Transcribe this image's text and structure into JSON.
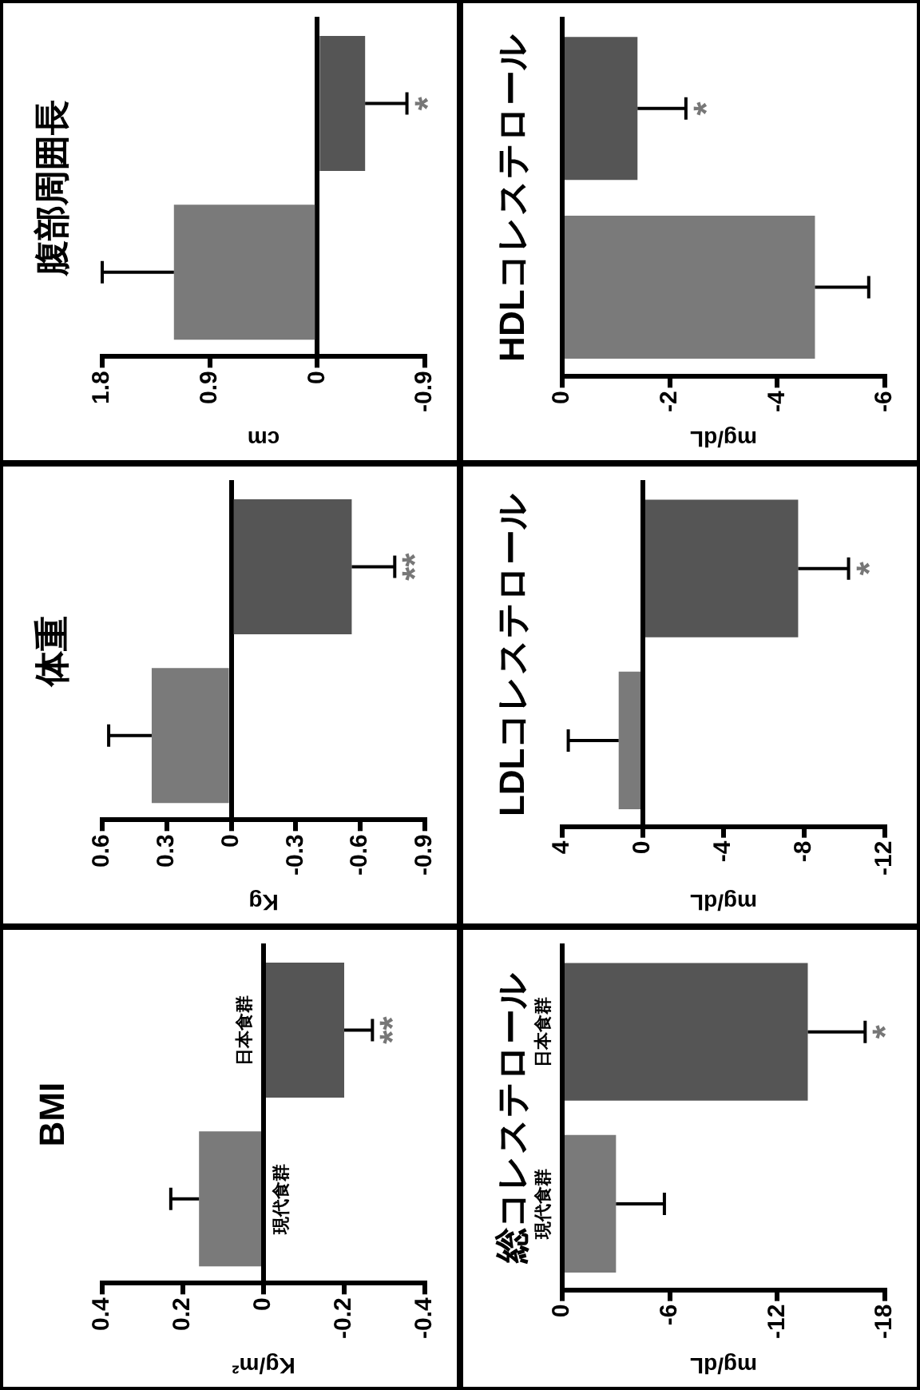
{
  "chart_data": [
    {
      "type": "bar",
      "orientation": "horizontal",
      "title": "腹部周囲長",
      "xlabel": "cm",
      "categories": [
        null,
        null
      ],
      "values": [
        -0.4,
        1.2
      ],
      "colors": [
        "#555555",
        "#7a7a7a"
      ],
      "errors": [
        0.35,
        0.6
      ],
      "xlim": [
        1.8,
        -0.9
      ],
      "xticks": [
        1.8,
        0.9,
        0,
        -0.9
      ],
      "annotations": [
        {
          "text": "*",
          "x": -0.75
        }
      ]
    },
    {
      "type": "bar",
      "orientation": "horizontal",
      "title": "HDLコレステロール",
      "xlabel": "mg/dL",
      "categories": [
        null,
        null
      ],
      "values": [
        -1.4,
        -4.7
      ],
      "colors": [
        "#555555",
        "#7a7a7a"
      ],
      "errors": [
        0.9,
        1.0
      ],
      "xlim": [
        0,
        -6
      ],
      "xticks": [
        0,
        -2,
        -4,
        -6
      ],
      "annotations": [
        {
          "text": "*",
          "x": -2.3
        }
      ]
    },
    {
      "type": "bar",
      "orientation": "horizontal",
      "title": "体重",
      "xlabel": "Kg",
      "categories": [
        null,
        null
      ],
      "values": [
        -0.56,
        0.37
      ],
      "colors": [
        "#555555",
        "#7a7a7a"
      ],
      "errors": [
        0.2,
        0.2
      ],
      "xlim": [
        0.6,
        -0.9
      ],
      "xticks": [
        0.6,
        0.3,
        0,
        -0.3,
        -0.6,
        -0.9
      ],
      "annotations": [
        {
          "text": "**",
          "x": -0.76
        }
      ]
    },
    {
      "type": "bar",
      "orientation": "horizontal",
      "title": "LDLコレステロール",
      "xlabel": "mg/dL",
      "categories": [
        null,
        null
      ],
      "values": [
        -7.7,
        1.2
      ],
      "colors": [
        "#555555",
        "#7a7a7a"
      ],
      "errors": [
        2.5,
        2.5
      ],
      "xlim": [
        4,
        -12
      ],
      "xticks": [
        4,
        0,
        -4,
        -8,
        -12
      ],
      "annotations": [
        {
          "text": "*",
          "x": -10.2
        }
      ]
    },
    {
      "type": "bar",
      "orientation": "horizontal",
      "title": "BMI",
      "xlabel": "Kg/m²",
      "categories": [
        "日本食群",
        "現代食群"
      ],
      "values": [
        -0.2,
        0.16
      ],
      "colors": [
        "#555555",
        "#7a7a7a"
      ],
      "errors": [
        0.07,
        0.07
      ],
      "xlim": [
        0.4,
        -0.4
      ],
      "xticks": [
        0.4,
        0.2,
        0,
        -0.2,
        -0.4
      ],
      "annotations": [
        {
          "text": "**",
          "x": -0.27
        }
      ]
    },
    {
      "type": "bar",
      "orientation": "horizontal",
      "title": "総コレステロール",
      "xlabel": "mg/dL",
      "categories": [
        "日本食群",
        "現代食群"
      ],
      "values": [
        -13.7,
        -3
      ],
      "colors": [
        "#555555",
        "#7a7a7a"
      ],
      "errors": [
        3.2,
        2.7
      ],
      "xlim": [
        0,
        -18
      ],
      "xticks": [
        0,
        -6,
        -12,
        -18
      ],
      "annotations": [
        {
          "text": "*",
          "x": -16.9
        }
      ]
    }
  ]
}
